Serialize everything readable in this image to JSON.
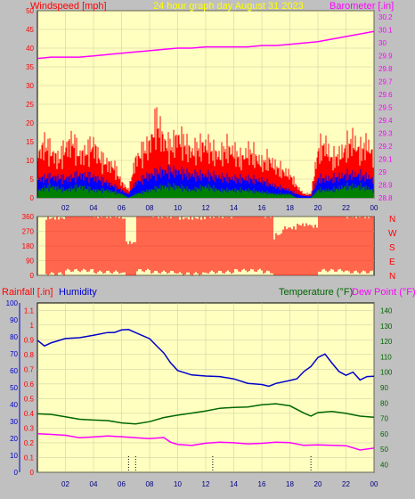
{
  "colors": {
    "background": "#c0c0c0",
    "plot_bg": "#ffffc0",
    "wind": "#ff0000",
    "gust": "#ff0000",
    "wind_avg": "#0000ff",
    "wind_low": "#008000",
    "barometer": "#ff00ff",
    "direction": "#ff0000",
    "rain": "#ff0000",
    "humidity": "#0000cc",
    "temperature": "#006600",
    "dewpoint": "#ff00ff",
    "axis_text": "#000080"
  },
  "header": {
    "left": "Windspeed [mph]",
    "center": "24 hour graph day   August 31 2023",
    "right": "Barometer [.in]"
  },
  "lower_header": {
    "rain": "Rainfall [.in]",
    "humidity": "Humidity",
    "temperature": "Temperature (°F)",
    "dewpoint": "Dew Point (°F)"
  },
  "compass_labels": [
    "N",
    "W",
    "S",
    "E",
    "N"
  ],
  "chart_data": [
    {
      "type": "line",
      "title": "24 hour graph day   August 31 2023",
      "x_ticks": [
        "02",
        "04",
        "06",
        "08",
        "10",
        "12",
        "14",
        "16",
        "18",
        "20",
        "22",
        "00"
      ],
      "y_left_label": "Windspeed [mph]",
      "y_left_ticks": [
        "0",
        "5",
        "10",
        "15",
        "20",
        "25",
        "30",
        "35",
        "40",
        "45",
        "50"
      ],
      "y_left_lim": [
        0,
        50
      ],
      "y_right_label": "Barometer [.in]",
      "y_right_ticks": [
        "28.8",
        "28.9",
        "29",
        "29.1",
        "29.2",
        "29.3",
        "29.4",
        "29.5",
        "29.6",
        "29.7",
        "29.8",
        "29.9",
        "30",
        "30.1",
        "30.2"
      ],
      "y_right_lim": [
        28.8,
        30.25
      ],
      "grid": true,
      "series": [
        {
          "name": "Windspeed [mph]",
          "kind": "gust",
          "x": [
            0,
            0.5,
            1,
            1.5,
            2,
            2.5,
            3,
            3.5,
            4,
            4.5,
            5,
            5.5,
            6,
            6.5,
            7,
            7.5,
            8,
            8.5,
            9,
            9.5,
            10,
            10.5,
            11,
            11.5,
            12,
            12.5,
            13,
            13.5,
            14,
            14.5,
            15,
            15.5,
            16,
            16.5,
            17,
            17.5,
            18,
            18.5,
            19,
            19.5,
            20,
            20.5,
            21,
            21.5,
            22,
            22.5,
            23,
            23.5,
            24
          ],
          "values": [
            11,
            14,
            12,
            10,
            13,
            15,
            11,
            12,
            14,
            10,
            9,
            8,
            4,
            2,
            10,
            12,
            14,
            20,
            15,
            13,
            16,
            14,
            12,
            13,
            14,
            12,
            11,
            13,
            12,
            10,
            12,
            11,
            9,
            10,
            8,
            7,
            6,
            3,
            1,
            1,
            12,
            14,
            10,
            11,
            13,
            15,
            12,
            14,
            11
          ]
        },
        {
          "name": "Average",
          "kind": "avg",
          "x": [
            0,
            1,
            2,
            3,
            4,
            5,
            6,
            6.5,
            7,
            8,
            9,
            10,
            11,
            12,
            13,
            14,
            15,
            16,
            17,
            18,
            18.5,
            19,
            19.5,
            20,
            21,
            22,
            23,
            24
          ],
          "values": [
            5,
            5.5,
            5,
            6,
            5.5,
            4,
            2,
            1,
            4,
            6,
            7,
            7,
            6,
            6,
            5.5,
            5,
            5,
            4.5,
            3,
            2,
            1,
            0.5,
            0.5,
            5,
            5,
            6,
            6,
            5
          ]
        },
        {
          "name": "Low",
          "kind": "low",
          "x": [
            0,
            1,
            2,
            3,
            4,
            5,
            6,
            6.5,
            7,
            8,
            9,
            10,
            11,
            12,
            13,
            14,
            15,
            16,
            17,
            18,
            18.5,
            19,
            19.5,
            20,
            21,
            22,
            23,
            24
          ],
          "values": [
            2,
            3,
            2,
            3,
            2,
            2,
            1,
            0,
            1,
            2,
            3,
            3,
            2,
            3,
            2,
            2,
            2,
            1.5,
            1,
            1,
            0,
            0,
            0,
            2,
            2,
            3,
            3,
            2
          ]
        },
        {
          "name": "Barometer [.in]",
          "axis": "right",
          "x": [
            0,
            1,
            2,
            3,
            4,
            5,
            6,
            7,
            8,
            9,
            10,
            11,
            12,
            13,
            14,
            15,
            16,
            17,
            18,
            19,
            20,
            21,
            22,
            23,
            24
          ],
          "values": [
            29.88,
            29.89,
            29.89,
            29.89,
            29.9,
            29.91,
            29.92,
            29.93,
            29.94,
            29.95,
            29.96,
            29.96,
            29.97,
            29.97,
            29.97,
            29.97,
            29.98,
            29.98,
            29.99,
            30.0,
            30.01,
            30.03,
            30.05,
            30.07,
            30.09
          ]
        }
      ]
    },
    {
      "type": "line",
      "title": "",
      "x_ticks": [],
      "y_left_ticks": [
        "360",
        "270",
        "180",
        "90",
        "0"
      ],
      "y_left_lim": [
        0,
        360
      ],
      "y_right_ticks": [
        "N",
        "W",
        "S",
        "E",
        "N"
      ],
      "series": [
        {
          "name": "Wind direction",
          "kind": "direction",
          "x": [
            0,
            2,
            4,
            6,
            6.3,
            7,
            8,
            10,
            12,
            14,
            16,
            16.8,
            17,
            17.5,
            18,
            18.5,
            19,
            19.5,
            20,
            22,
            24
          ],
          "values": [
            180,
            200,
            190,
            180,
            30,
            200,
            190,
            180,
            190,
            200,
            190,
            60,
            80,
            120,
            120,
            140,
            140,
            130,
            200,
            190,
            180
          ]
        }
      ]
    },
    {
      "type": "line",
      "title": "",
      "x_ticks": [
        "02",
        "04",
        "06",
        "08",
        "10",
        "12",
        "14",
        "16",
        "18",
        "20",
        "22",
        "00"
      ],
      "y_rain_label": "Rainfall [.in]",
      "y_rain_ticks": [
        "0",
        "0.1",
        "0.2",
        "0.3",
        "0.4",
        "0.5",
        "0.6",
        "0.7",
        "0.8",
        "0.9",
        "1",
        "1.1"
      ],
      "y_rain_lim": [
        0,
        1.15
      ],
      "y_humidity_label": "Humidity",
      "y_humidity_ticks": [
        "0",
        "10",
        "20",
        "30",
        "40",
        "50",
        "60",
        "70",
        "80",
        "90",
        "100"
      ],
      "y_humidity_lim": [
        0,
        100
      ],
      "y_temp_label": "Temperature (°F)",
      "y_temp_ticks": [
        "40",
        "50",
        "60",
        "70",
        "80",
        "90",
        "100",
        "110",
        "120",
        "130",
        "140"
      ],
      "y_temp_lim": [
        35,
        145
      ],
      "series": [
        {
          "name": "Humidity",
          "axis": "humidity",
          "x": [
            0,
            0.5,
            1,
            2,
            3,
            4,
            5,
            5.5,
            6,
            6.5,
            7,
            8,
            8.5,
            9,
            9.5,
            10,
            11,
            12,
            13,
            14,
            15,
            16,
            16.5,
            17,
            18,
            18.5,
            19,
            19.5,
            20,
            20.5,
            21,
            21.5,
            22,
            22.5,
            23,
            23.5,
            24
          ],
          "values": [
            78,
            75,
            76,
            79,
            80,
            81,
            82,
            83,
            84,
            84,
            83,
            79,
            75,
            70,
            65,
            60,
            58,
            57,
            56,
            55,
            53,
            52,
            51,
            52,
            54,
            55,
            60,
            62,
            68,
            70,
            64,
            60,
            57,
            59,
            55,
            56,
            57
          ]
        },
        {
          "name": "Temperature (°F)",
          "axis": "temp",
          "x": [
            0,
            1,
            2,
            3,
            4,
            5,
            6,
            7,
            8,
            9,
            10,
            11,
            12,
            13,
            14,
            15,
            16,
            17,
            18,
            19,
            19.5,
            20,
            21,
            22,
            23,
            24
          ],
          "values": [
            73,
            72,
            71,
            70,
            69,
            68,
            67,
            67,
            68,
            70,
            72,
            74,
            75,
            76,
            77,
            78,
            79,
            79,
            78,
            74,
            71,
            74,
            74,
            73,
            72,
            71
          ]
        },
        {
          "name": "Dew Point (°F)",
          "axis": "temp",
          "x": [
            0,
            1,
            2,
            3,
            4,
            5,
            6,
            7,
            8,
            9,
            9.5,
            10,
            11,
            12,
            13,
            14,
            15,
            16,
            17,
            18,
            19,
            20,
            21,
            22,
            23,
            24
          ],
          "values": [
            60,
            59,
            59,
            58,
            58,
            58,
            58,
            58,
            57,
            57,
            55,
            53,
            53,
            54,
            54,
            54,
            54,
            54,
            54,
            54,
            53,
            53,
            52,
            52,
            50,
            51
          ]
        },
        {
          "name": "Rainfall [.in]",
          "axis": "rain",
          "x": [
            0,
            24
          ],
          "values": [
            0,
            0
          ]
        }
      ]
    }
  ]
}
